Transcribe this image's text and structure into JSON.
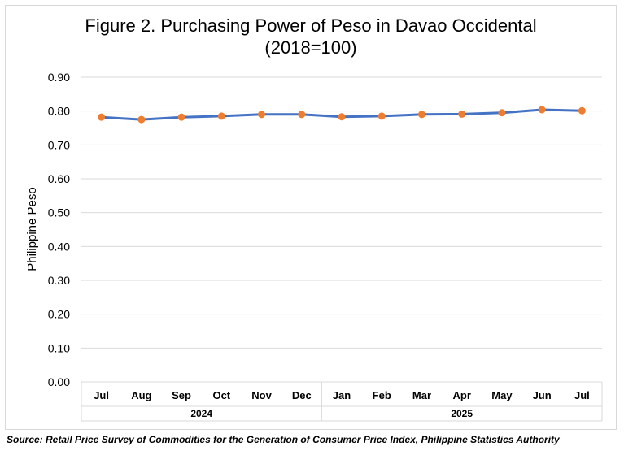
{
  "chart_data": {
    "type": "line",
    "title": "Figure 2. Purchasing Power of Peso in Davao Occidental",
    "subtitle": "(2018=100)",
    "xlabel": "",
    "ylabel": "Philippine Peso",
    "ylim": [
      0,
      0.9
    ],
    "yticks": [
      "0.00",
      "0.10",
      "0.20",
      "0.30",
      "0.40",
      "0.50",
      "0.60",
      "0.70",
      "0.80",
      "0.90"
    ],
    "grid": true,
    "legend": "none",
    "categories": [
      "Jul",
      "Aug",
      "Sep",
      "Oct",
      "Nov",
      "Dec",
      "Jan",
      "Feb",
      "Mar",
      "Apr",
      "May",
      "Jun",
      "Jul"
    ],
    "groups": [
      {
        "label": "2024",
        "count": 6
      },
      {
        "label": "2025",
        "count": 7
      }
    ],
    "series": [
      {
        "values": [
          0.782,
          0.775,
          0.782,
          0.785,
          0.79,
          0.79,
          0.783,
          0.785,
          0.79,
          0.791,
          0.795,
          0.804,
          0.801
        ],
        "line_color": "#4472c4",
        "marker_color": "#ed7d31"
      }
    ]
  },
  "source": "Source: Retail Price Survey of Commodities for the Generation of Consumer Price Index, Philippine Statistics Authority"
}
